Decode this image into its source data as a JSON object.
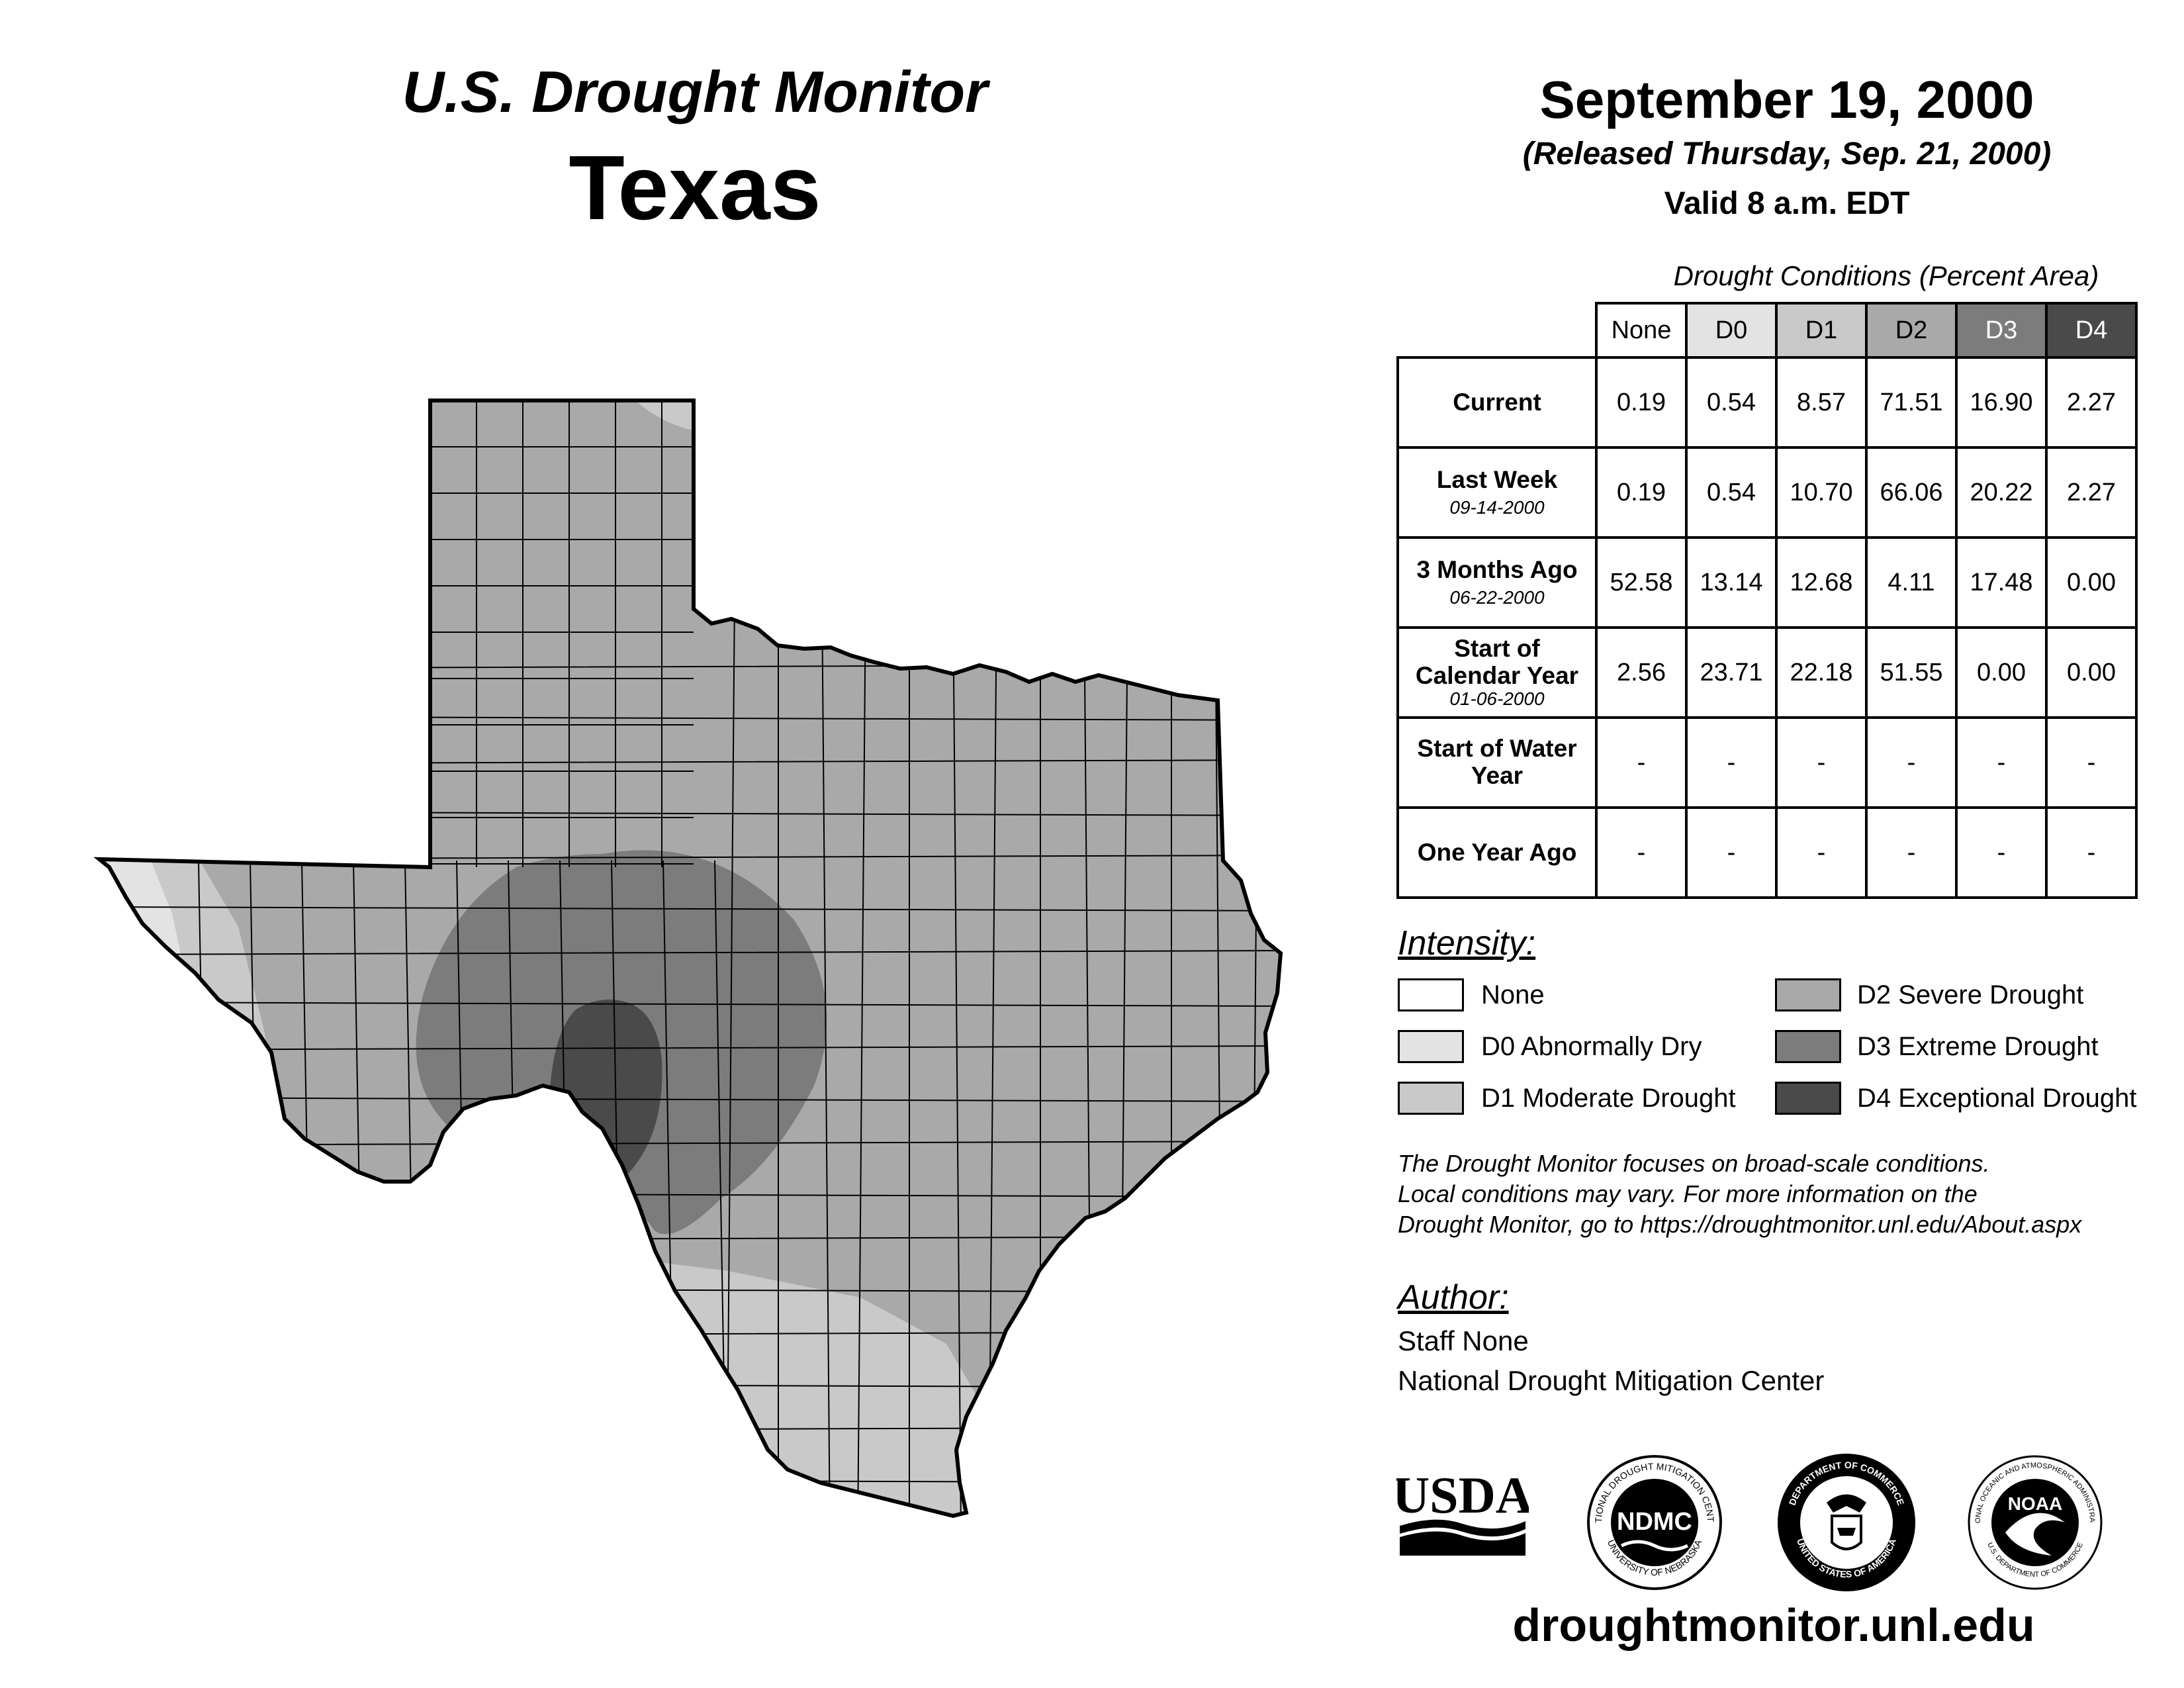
{
  "header": {
    "title": "U.S. Drought Monitor",
    "state": "Texas",
    "date": "September 19, 2000",
    "released": "(Released Thursday, Sep. 21, 2000)",
    "valid": "Valid 8 a.m. EDT"
  },
  "table": {
    "caption": "Drought Conditions (Percent Area)",
    "columns": [
      "None",
      "D0",
      "D1",
      "D2",
      "D3",
      "D4"
    ],
    "column_colors": [
      "#ffffff",
      "#e3e3e3",
      "#c9c9c9",
      "#a9a9a9",
      "#7c7c7c",
      "#4a4a4a"
    ],
    "rows": [
      {
        "label": "Current",
        "sub": "",
        "values": [
          "0.19",
          "0.54",
          "8.57",
          "71.51",
          "16.90",
          "2.27"
        ]
      },
      {
        "label": "Last Week",
        "sub": "09-14-2000",
        "values": [
          "0.19",
          "0.54",
          "10.70",
          "66.06",
          "20.22",
          "2.27"
        ]
      },
      {
        "label": "3 Months Ago",
        "sub": "06-22-2000",
        "values": [
          "52.58",
          "13.14",
          "12.68",
          "4.11",
          "17.48",
          "0.00"
        ]
      },
      {
        "label": "Start of Calendar Year",
        "sub": "01-06-2000",
        "values": [
          "2.56",
          "23.71",
          "22.18",
          "51.55",
          "0.00",
          "0.00"
        ]
      },
      {
        "label": "Start of Water Year",
        "sub": "",
        "values": [
          "-",
          "-",
          "-",
          "-",
          "-",
          "-"
        ]
      },
      {
        "label": "One Year Ago",
        "sub": "",
        "values": [
          "-",
          "-",
          "-",
          "-",
          "-",
          "-"
        ]
      }
    ]
  },
  "legend": {
    "heading": "Intensity:",
    "items": [
      {
        "label": "None",
        "color": "#ffffff"
      },
      {
        "label": "D0 Abnormally Dry",
        "color": "#e3e3e3"
      },
      {
        "label": "D1 Moderate Drought",
        "color": "#c9c9c9"
      },
      {
        "label": "D2 Severe Drought",
        "color": "#a9a9a9"
      },
      {
        "label": "D3 Extreme Drought",
        "color": "#7c7c7c"
      },
      {
        "label": "D4 Exceptional Drought",
        "color": "#4a4a4a"
      }
    ]
  },
  "note": {
    "line1": "The Drought Monitor focuses on broad-scale conditions.",
    "line2": "Local conditions may vary. For more information on the",
    "line3": "Drought Monitor, go to https://droughtmonitor.unl.edu/About.aspx"
  },
  "author": {
    "heading": "Author:",
    "name": "Staff None",
    "org": "National Drought Mitigation Center"
  },
  "logos": {
    "usda": "USDA",
    "ndmc": "NDMC",
    "ndmc_ring_top": "NATIONAL DROUGHT MITIGATION CENTER",
    "ndmc_ring_bottom": "UNIVERSITY OF NEBRASKA",
    "doc_ring_top": "DEPARTMENT OF COMMERCE",
    "doc_ring_bottom": "UNITED STATES OF AMERICA",
    "noaa": "NOAA",
    "noaa_ring_top": "NATIONAL OCEANIC AND ATMOSPHERIC ADMINISTRATION",
    "noaa_ring_bottom": "U.S. DEPARTMENT OF COMMERCE"
  },
  "website": "droughtmonitor.unl.edu"
}
